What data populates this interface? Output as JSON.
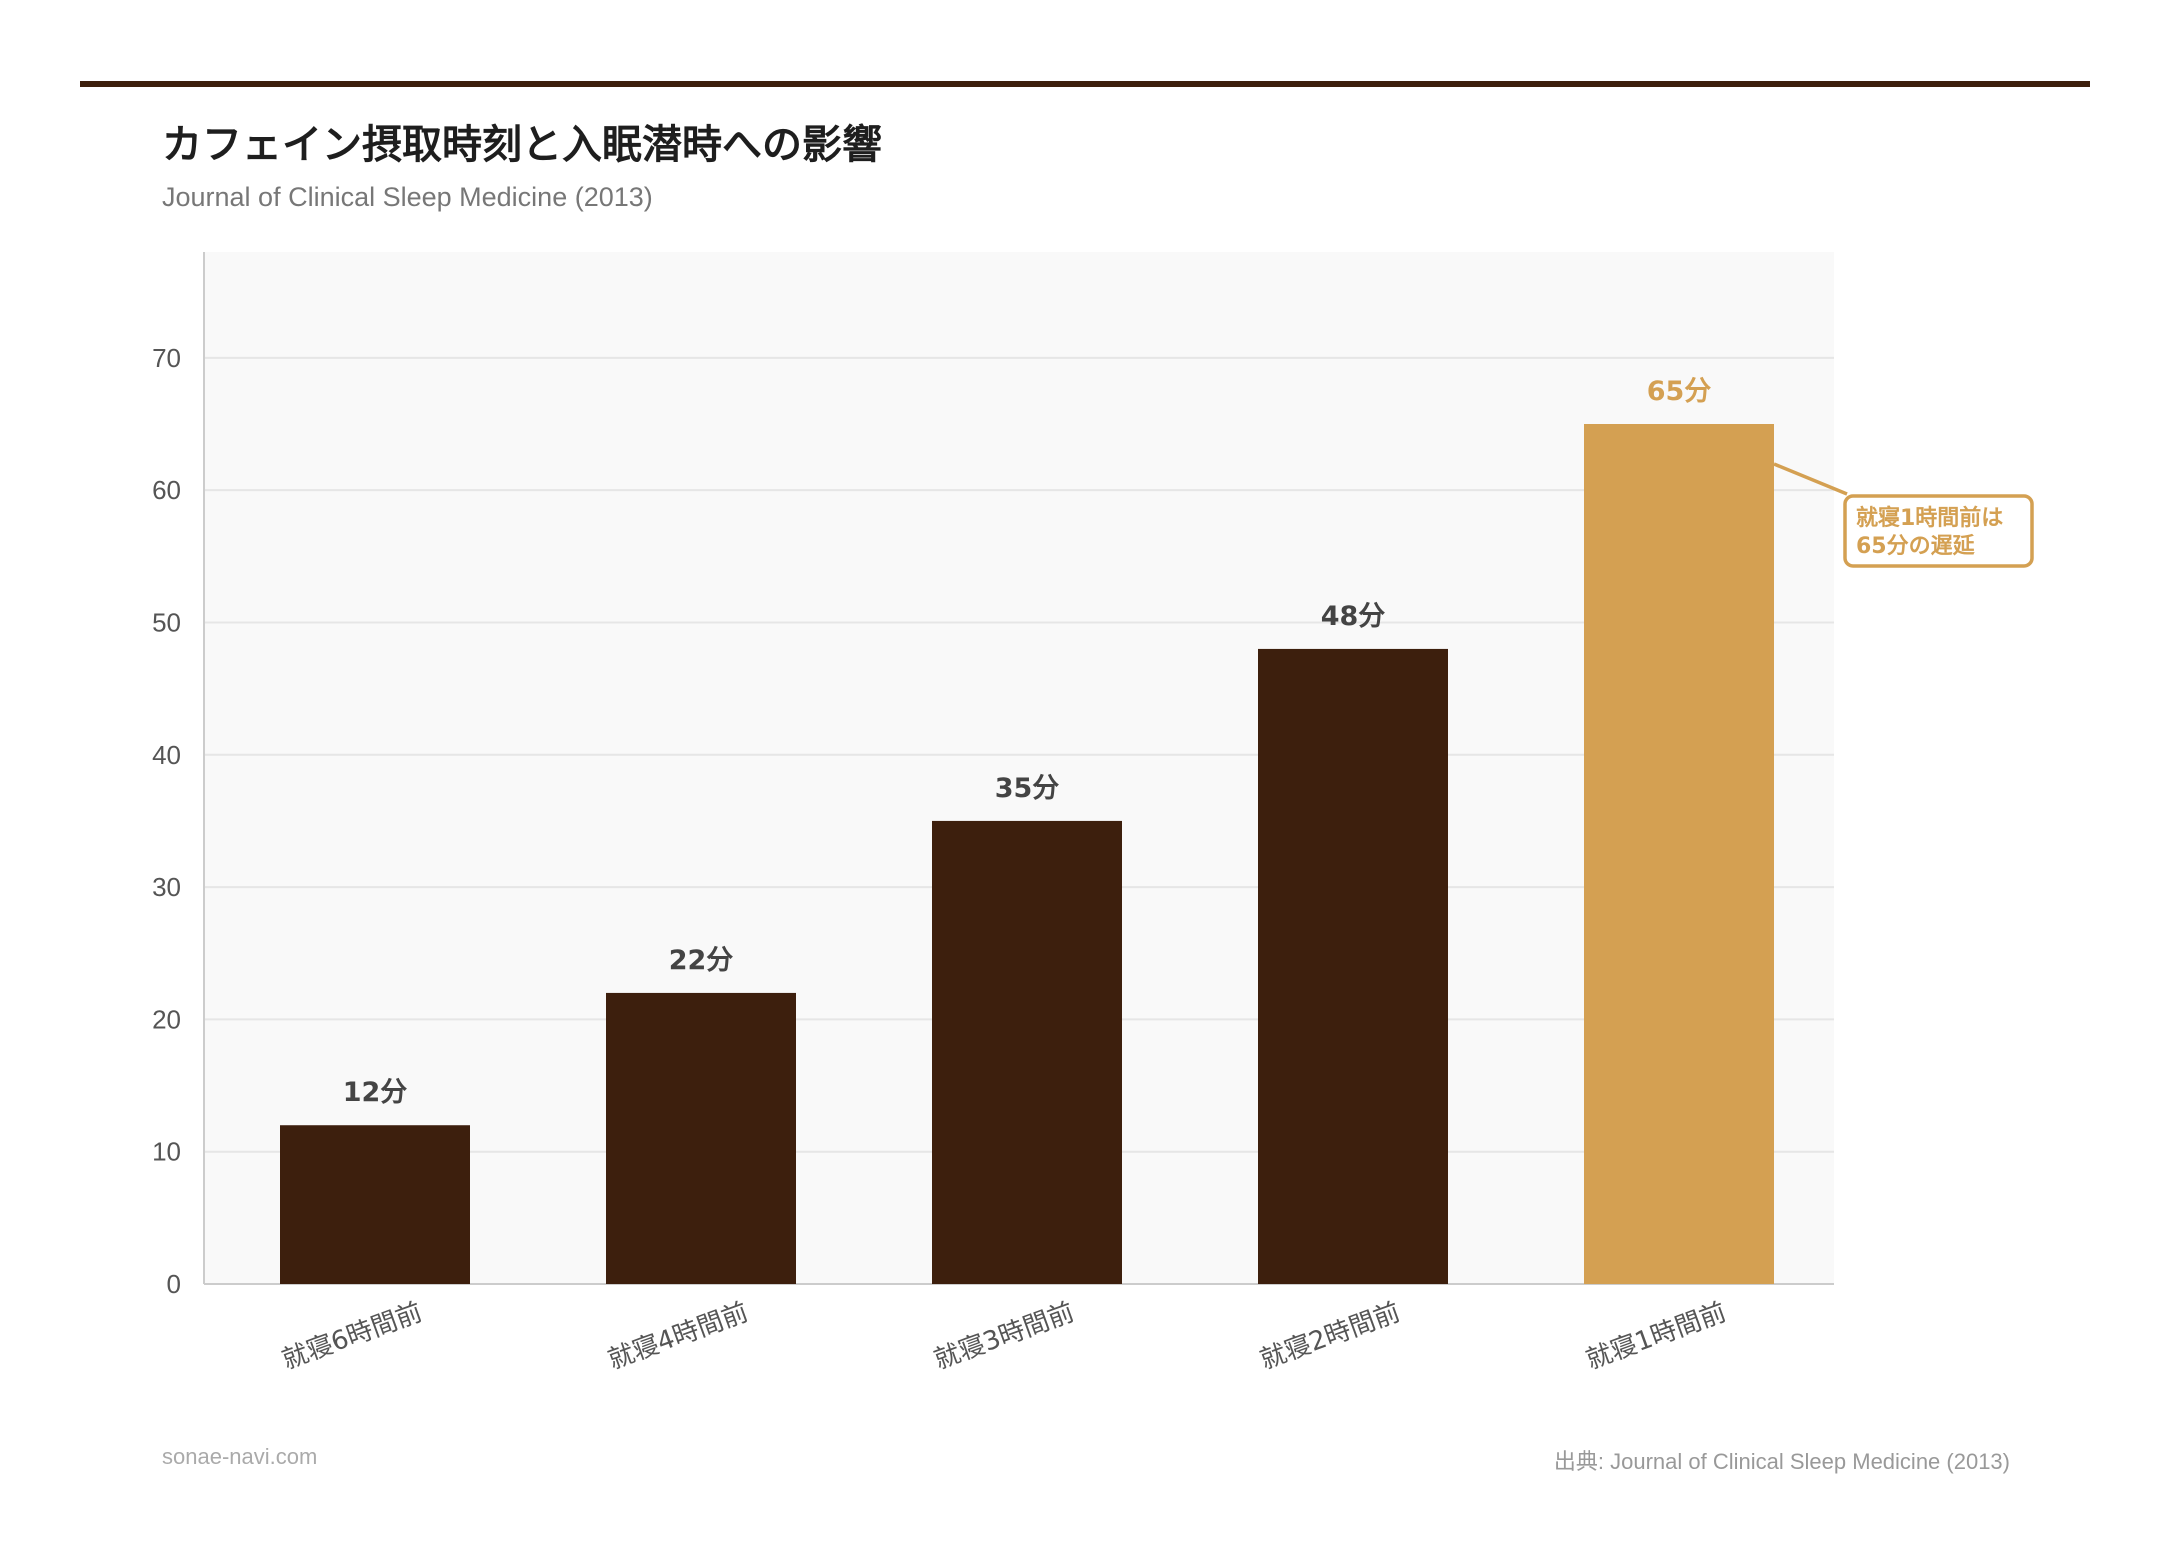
{
  "title": "カフェイン摂取時刻と入眠潜時への影響",
  "subtitle": "Journal of Clinical Sleep Medicine (2013)",
  "footer": {
    "site": "sonae-navi.com",
    "source": "出典: Journal of Clinical Sleep Medicine (2013)"
  },
  "colors": {
    "bar": "#3d1f0d",
    "highlight": "#d4a052",
    "rule": "#3d1f0d",
    "plot_bg": "#f9f9f9"
  },
  "chart_data": {
    "type": "bar",
    "categories": [
      "就寝6時間前",
      "就寝4時間前",
      "就寝3時間前",
      "就寝2時間前",
      "就寝1時間前"
    ],
    "values": [
      12,
      22,
      35,
      48,
      65
    ],
    "data_labels": [
      "12分",
      "22分",
      "35分",
      "48分",
      "65分"
    ],
    "highlight_index": 4,
    "yticks": [
      0,
      10,
      20,
      30,
      40,
      50,
      60,
      70
    ],
    "ylim": [
      0,
      78
    ],
    "grid": true,
    "xlabel": "",
    "ylabel": "",
    "annotation": {
      "text_line1": "就寝1時間前は",
      "text_line2": "65分の遅延",
      "target_index": 4
    }
  }
}
